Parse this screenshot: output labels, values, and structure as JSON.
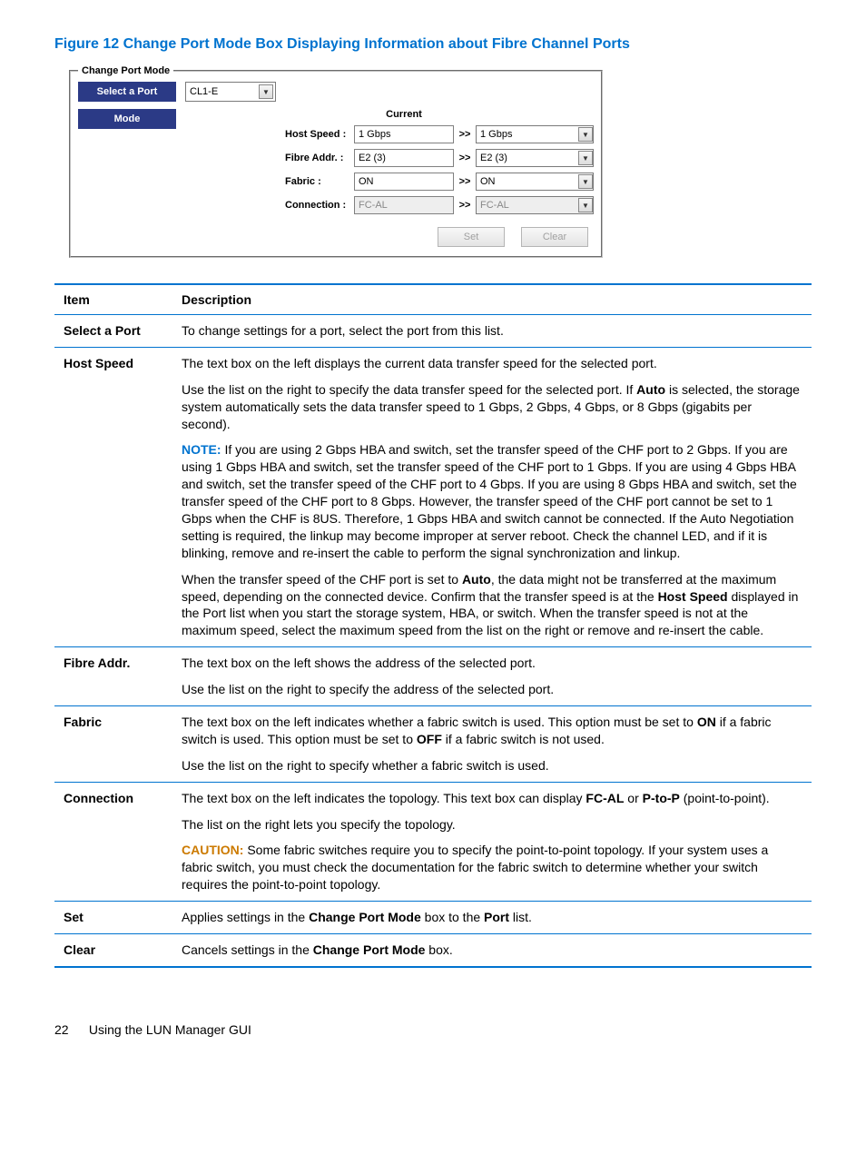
{
  "figure": {
    "title": "Figure 12 Change Port Mode Box Displaying Information about Fibre Channel Ports"
  },
  "cpm": {
    "legend": "Change Port Mode",
    "select_a_port_label": "Select a Port",
    "select_a_port_value": "CL1-E",
    "mode_label": "Mode",
    "current_header": "Current",
    "arrow": ">>",
    "rows": {
      "host_speed": {
        "label": "Host Speed :",
        "current": "1 Gbps",
        "selected": "1 Gbps"
      },
      "fibre_addr": {
        "label": "Fibre Addr. :",
        "current": "E2 (3)",
        "selected": "E2 (3)"
      },
      "fabric": {
        "label": "Fabric :",
        "current": "ON",
        "selected": "ON"
      },
      "connection": {
        "label": "Connection :",
        "current": "FC-AL",
        "selected": "FC-AL"
      }
    },
    "buttons": {
      "set": "Set",
      "clear": "Clear"
    }
  },
  "table": {
    "header": {
      "item": "Item",
      "description": "Description"
    },
    "select_a_port": {
      "item": "Select a Port",
      "desc": "To change settings for a port, select the port from this list."
    },
    "host_speed": {
      "item": "Host Speed",
      "p1": "The text box on the left displays the current data transfer speed for the selected port.",
      "p2a": "Use the list on the right to specify the data transfer speed for the selected port. If ",
      "p2b_bold": "Auto",
      "p2c": " is selected, the storage system automatically sets the data transfer speed to 1 Gbps, 2 Gbps, 4 Gbps, or 8 Gbps (gigabits per second).",
      "note_label": "NOTE:",
      "note_text": " If you are using 2 Gbps HBA and switch, set the transfer speed of the CHF port to 2 Gbps. If you are using 1 Gbps HBA and switch, set the transfer speed of the CHF port to 1 Gbps. If you are using 4 Gbps HBA and switch, set the transfer speed of the CHF port to 4 Gbps. If you are using 8 Gbps HBA and switch, set the transfer speed of the CHF port to 8 Gbps. However, the transfer speed of the CHF port cannot be set to 1 Gbps when the CHF is 8US. Therefore, 1 Gbps HBA and switch cannot be connected. If the Auto Negotiation setting is required, the linkup may become improper at server reboot. Check the channel LED, and if it is blinking, remove and re-insert the cable to perform the signal synchronization and linkup.",
      "p4a": "When the transfer speed of the CHF port is set to ",
      "p4b_bold": "Auto",
      "p4c": ", the data might not be transferred at the maximum speed, depending on the connected device. Confirm that the transfer speed is at the ",
      "p4d_bold": "Host Speed",
      "p4e": " displayed in the Port list when you start the storage system, HBA, or switch. When the transfer speed is not at the maximum speed, select the maximum speed from the list on the right or remove and re-insert the cable."
    },
    "fibre_addr": {
      "item": "Fibre Addr.",
      "p1": "The text box on the left shows the address of the selected port.",
      "p2": "Use the list on the right to specify the address of the selected port."
    },
    "fabric": {
      "item": "Fabric",
      "p1a": "The text box on the left indicates whether a fabric switch is used. This option must be set to ",
      "p1b_bold": "ON",
      "p1c": " if a fabric switch is used. This option must be set to ",
      "p1d_bold": "OFF",
      "p1e": " if a fabric switch is not used.",
      "p2": "Use the list on the right to specify whether a fabric switch is used."
    },
    "connection": {
      "item": "Connection",
      "p1a": "The text box on the left indicates the topology. This text box can display ",
      "p1b_bold": "FC-AL",
      "p1c": " or ",
      "p1d_bold": "P-to-P",
      "p1e": " (point-to-point).",
      "p2": "The list on the right lets you specify the topology.",
      "caution_label": "CAUTION:",
      "caution_text": " Some fabric switches require you to specify the point-to-point topology. If your system uses a fabric switch, you must check the documentation for the fabric switch to determine whether your switch requires the point-to-point topology."
    },
    "set": {
      "item": "Set",
      "a": "Applies settings in the ",
      "b_bold": "Change Port Mode",
      "c": " box to the ",
      "d_bold": "Port",
      "e": " list."
    },
    "clear": {
      "item": "Clear",
      "a": "Cancels settings in the ",
      "b_bold": "Change Port Mode",
      "c": " box."
    }
  },
  "footer": {
    "page": "22",
    "text": "Using the LUN Manager GUI"
  }
}
